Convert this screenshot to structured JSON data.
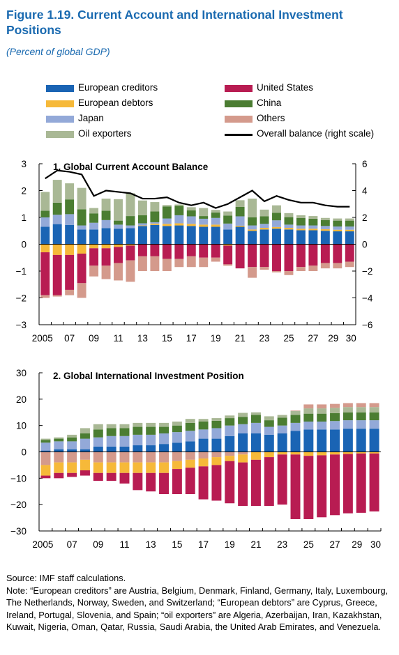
{
  "figure": {
    "title": "Figure 1.19.  Current Account and International Investment Positions",
    "subtitle": "(Percent of global GDP)"
  },
  "legend": [
    {
      "label": "European creditors",
      "color": "#1a64b4",
      "kind": "bar"
    },
    {
      "label": "United States",
      "color": "#b81c52",
      "kind": "bar"
    },
    {
      "label": "European debtors",
      "color": "#f6b939",
      "kind": "bar"
    },
    {
      "label": "China",
      "color": "#4b7d32",
      "kind": "bar"
    },
    {
      "label": "Japan",
      "color": "#93a9d8",
      "kind": "bar"
    },
    {
      "label": "Others",
      "color": "#d49a8c",
      "kind": "bar"
    },
    {
      "label": "Oil exporters",
      "color": "#a9b895",
      "kind": "bar"
    },
    {
      "label": "Overall balance (right scale)",
      "color": "#000000",
      "kind": "line"
    }
  ],
  "chart_data": [
    {
      "type": "bar",
      "stacked": true,
      "title": "1. Global Current Account Balance",
      "x_tick_labels": [
        "2005",
        "07",
        "09",
        "11",
        "13",
        "15",
        "17",
        "19",
        "21",
        "23",
        "25",
        "27",
        "29",
        "30"
      ],
      "ylim": [
        -3,
        3
      ],
      "yticks": [
        "3",
        "2",
        "1",
        "0",
        "−1",
        "−2",
        "−3"
      ],
      "y2lim": [
        -6,
        6
      ],
      "y2ticks": [
        "6",
        "4",
        "2",
        "0",
        "−2",
        "−4",
        "−6"
      ],
      "years": [
        2005,
        2006,
        2007,
        2008,
        2009,
        2010,
        2011,
        2012,
        2013,
        2014,
        2015,
        2016,
        2017,
        2018,
        2019,
        2020,
        2021,
        2022,
        2023,
        2024,
        2025,
        2026,
        2027,
        2028,
        2029,
        2030
      ],
      "series": [
        {
          "name": "European creditors",
          "color": "#1a64b4",
          "values": [
            0.65,
            0.75,
            0.72,
            0.55,
            0.55,
            0.6,
            0.58,
            0.6,
            0.68,
            0.72,
            0.68,
            0.7,
            0.68,
            0.65,
            0.65,
            0.55,
            0.65,
            0.5,
            0.55,
            0.58,
            0.55,
            0.52,
            0.52,
            0.5,
            0.48,
            0.48
          ]
        },
        {
          "name": "European debtors",
          "color": "#f6b939",
          "values": [
            -0.3,
            -0.4,
            -0.4,
            -0.35,
            -0.15,
            -0.15,
            -0.1,
            -0.05,
            0.02,
            0.05,
            0.08,
            0.08,
            0.08,
            0.08,
            0.08,
            -0.05,
            0.04,
            0.05,
            0.06,
            0.06,
            0.06,
            0.06,
            0.06,
            0.06,
            0.06,
            0.06
          ]
        },
        {
          "name": "Japan",
          "color": "#93a9d8",
          "values": [
            0.35,
            0.35,
            0.4,
            0.15,
            0.25,
            0.3,
            0.15,
            0.1,
            0.08,
            0.05,
            0.2,
            0.3,
            0.28,
            0.22,
            0.25,
            0.22,
            0.35,
            0.15,
            0.15,
            0.25,
            0.12,
            0.12,
            0.12,
            0.12,
            0.12,
            0.12
          ]
        },
        {
          "name": "China",
          "color": "#4b7d32",
          "values": [
            0.25,
            0.45,
            0.55,
            0.6,
            0.35,
            0.35,
            0.15,
            0.35,
            0.3,
            0.4,
            0.45,
            0.35,
            0.22,
            0.1,
            0.2,
            0.3,
            0.35,
            0.3,
            0.28,
            0.28,
            0.28,
            0.28,
            0.25,
            0.22,
            0.22,
            0.22
          ]
        },
        {
          "name": "Oil exporters",
          "color": "#a9b895",
          "values": [
            0.7,
            0.85,
            0.6,
            0.8,
            0.2,
            0.45,
            0.8,
            0.85,
            0.55,
            0.35,
            0.05,
            0.05,
            0.12,
            0.3,
            0.1,
            0.15,
            0.25,
            0.7,
            0.25,
            0.28,
            0.15,
            0.1,
            0.1,
            0.08,
            0.08,
            0.08
          ]
        },
        {
          "name": "United States",
          "color": "#b81c52",
          "values": [
            -1.6,
            -1.5,
            -1.3,
            -1.1,
            -0.65,
            -0.65,
            -0.6,
            -0.55,
            -0.45,
            -0.45,
            -0.55,
            -0.55,
            -0.45,
            -0.5,
            -0.5,
            -0.7,
            -0.9,
            -0.85,
            -0.85,
            -1.0,
            -1.0,
            -0.85,
            -0.8,
            -0.7,
            -0.7,
            -0.65
          ]
        },
        {
          "name": "Others",
          "color": "#d49a8c",
          "values": [
            -0.1,
            -0.05,
            -0.2,
            -0.55,
            -0.4,
            -0.5,
            -0.65,
            -0.8,
            -0.55,
            -0.55,
            -0.45,
            -0.3,
            -0.4,
            -0.35,
            -0.15,
            -0.05,
            0,
            -0.4,
            -0.1,
            -0.05,
            -0.15,
            -0.15,
            -0.2,
            -0.2,
            -0.2,
            -0.2
          ]
        }
      ],
      "line": {
        "name": "Overall balance (right scale)",
        "values": [
          4.9,
          5.5,
          5.4,
          5.2,
          3.6,
          4.0,
          3.9,
          3.8,
          3.4,
          3.4,
          3.5,
          3.1,
          2.9,
          3.1,
          2.7,
          3.0,
          3.5,
          4.0,
          3.2,
          3.6,
          3.3,
          3.1,
          3.1,
          2.9,
          2.8,
          2.8
        ]
      }
    },
    {
      "type": "bar",
      "stacked": true,
      "title": "2. Global International Investment Position",
      "x_tick_labels": [
        "2005",
        "07",
        "09",
        "11",
        "13",
        "15",
        "17",
        "19",
        "21",
        "23",
        "25",
        "27",
        "29",
        "30"
      ],
      "ylim": [
        -30,
        30
      ],
      "yticks": [
        "30",
        "20",
        "10",
        "0",
        "−10",
        "−20",
        "−30"
      ],
      "years": [
        2005,
        2006,
        2007,
        2008,
        2009,
        2010,
        2011,
        2012,
        2013,
        2014,
        2015,
        2016,
        2017,
        2018,
        2019,
        2020,
        2021,
        2022,
        2023,
        2024,
        2025,
        2026,
        2027,
        2028,
        2029,
        2030
      ],
      "series": [
        {
          "name": "European creditors",
          "color": "#1a64b4",
          "values": [
            0.5,
            1,
            1,
            1,
            2,
            2,
            2,
            2.5,
            2.5,
            3,
            3.5,
            4,
            5,
            5,
            6,
            7,
            7,
            6.5,
            7,
            8,
            8.5,
            8.5,
            8.5,
            8.8,
            8.8,
            8.8
          ]
        },
        {
          "name": "Japan",
          "color": "#93a9d8",
          "values": [
            3,
            3,
            3,
            4,
            3.5,
            4,
            4,
            4,
            4,
            4,
            4,
            4,
            3.5,
            4,
            4,
            3.5,
            4,
            3,
            3,
            3,
            3,
            3,
            3.2,
            3.2,
            3.2,
            3.2
          ]
        },
        {
          "name": "China",
          "color": "#4b7d32",
          "values": [
            1,
            1,
            1.5,
            2,
            3,
            3,
            3,
            3,
            3,
            2.5,
            2.5,
            3,
            3,
            2.8,
            2.8,
            2.8,
            3,
            2.5,
            3,
            3,
            3,
            3,
            3,
            3,
            3,
            3
          ]
        },
        {
          "name": "Oil exporters",
          "color": "#a9b895",
          "values": [
            0.5,
            0.5,
            1,
            2,
            2,
            1.5,
            1.5,
            1.5,
            1.5,
            1.5,
            1.5,
            1.5,
            1,
            1,
            1,
            1.5,
            1,
            1.5,
            1,
            1.5,
            2,
            2,
            2,
            2,
            2,
            2
          ]
        },
        {
          "name": "Others",
          "color": "#d49a8c",
          "values": [
            -5,
            -4,
            -4,
            -3,
            -4,
            -4,
            -4,
            -4,
            -4,
            -4,
            -3.5,
            -3,
            -2.5,
            -2,
            -1.5,
            -1,
            0,
            0,
            0,
            0.2,
            1.5,
            1.5,
            1.5,
            1.5,
            1.5,
            1.5
          ]
        },
        {
          "name": "European debtors",
          "color": "#f6b939",
          "values": [
            -4,
            -4,
            -4,
            -4,
            -4,
            -4,
            -4,
            -4,
            -4,
            -4,
            -3,
            -3,
            -3,
            -3,
            -2,
            -3,
            -3,
            -2,
            -1,
            -1,
            -1.5,
            -1.3,
            -1,
            -0.8,
            -0.6,
            -0.6
          ]
        },
        {
          "name": "United States",
          "color": "#b81c52",
          "values": [
            -1,
            -2,
            -1.5,
            -2,
            -3,
            -3,
            -4,
            -6.5,
            -7,
            -8,
            -9.5,
            -10,
            -12.5,
            -13.5,
            -16,
            -16.5,
            -17.5,
            -18.5,
            -19,
            -24.5,
            -24,
            -23.5,
            -23,
            -22.5,
            -22.5,
            -22
          ]
        }
      ]
    }
  ],
  "notes": {
    "source": "Source: IMF staff calculations.",
    "note": "Note: “European creditors” are Austria, Belgium, Denmark, Finland, Germany, Italy, Luxembourg, The Netherlands, Norway, Sweden, and Switzerland; “European debtors” are Cyprus, Greece, Ireland, Portugal, Slovenia, and Spain; “oil exporters” are Algeria, Azerbaijan, Iran, Kazakhstan, Kuwait, Nigeria, Oman, Qatar, Russia, Saudi Arabia, the United Arab Emirates, and Venezuela."
  }
}
